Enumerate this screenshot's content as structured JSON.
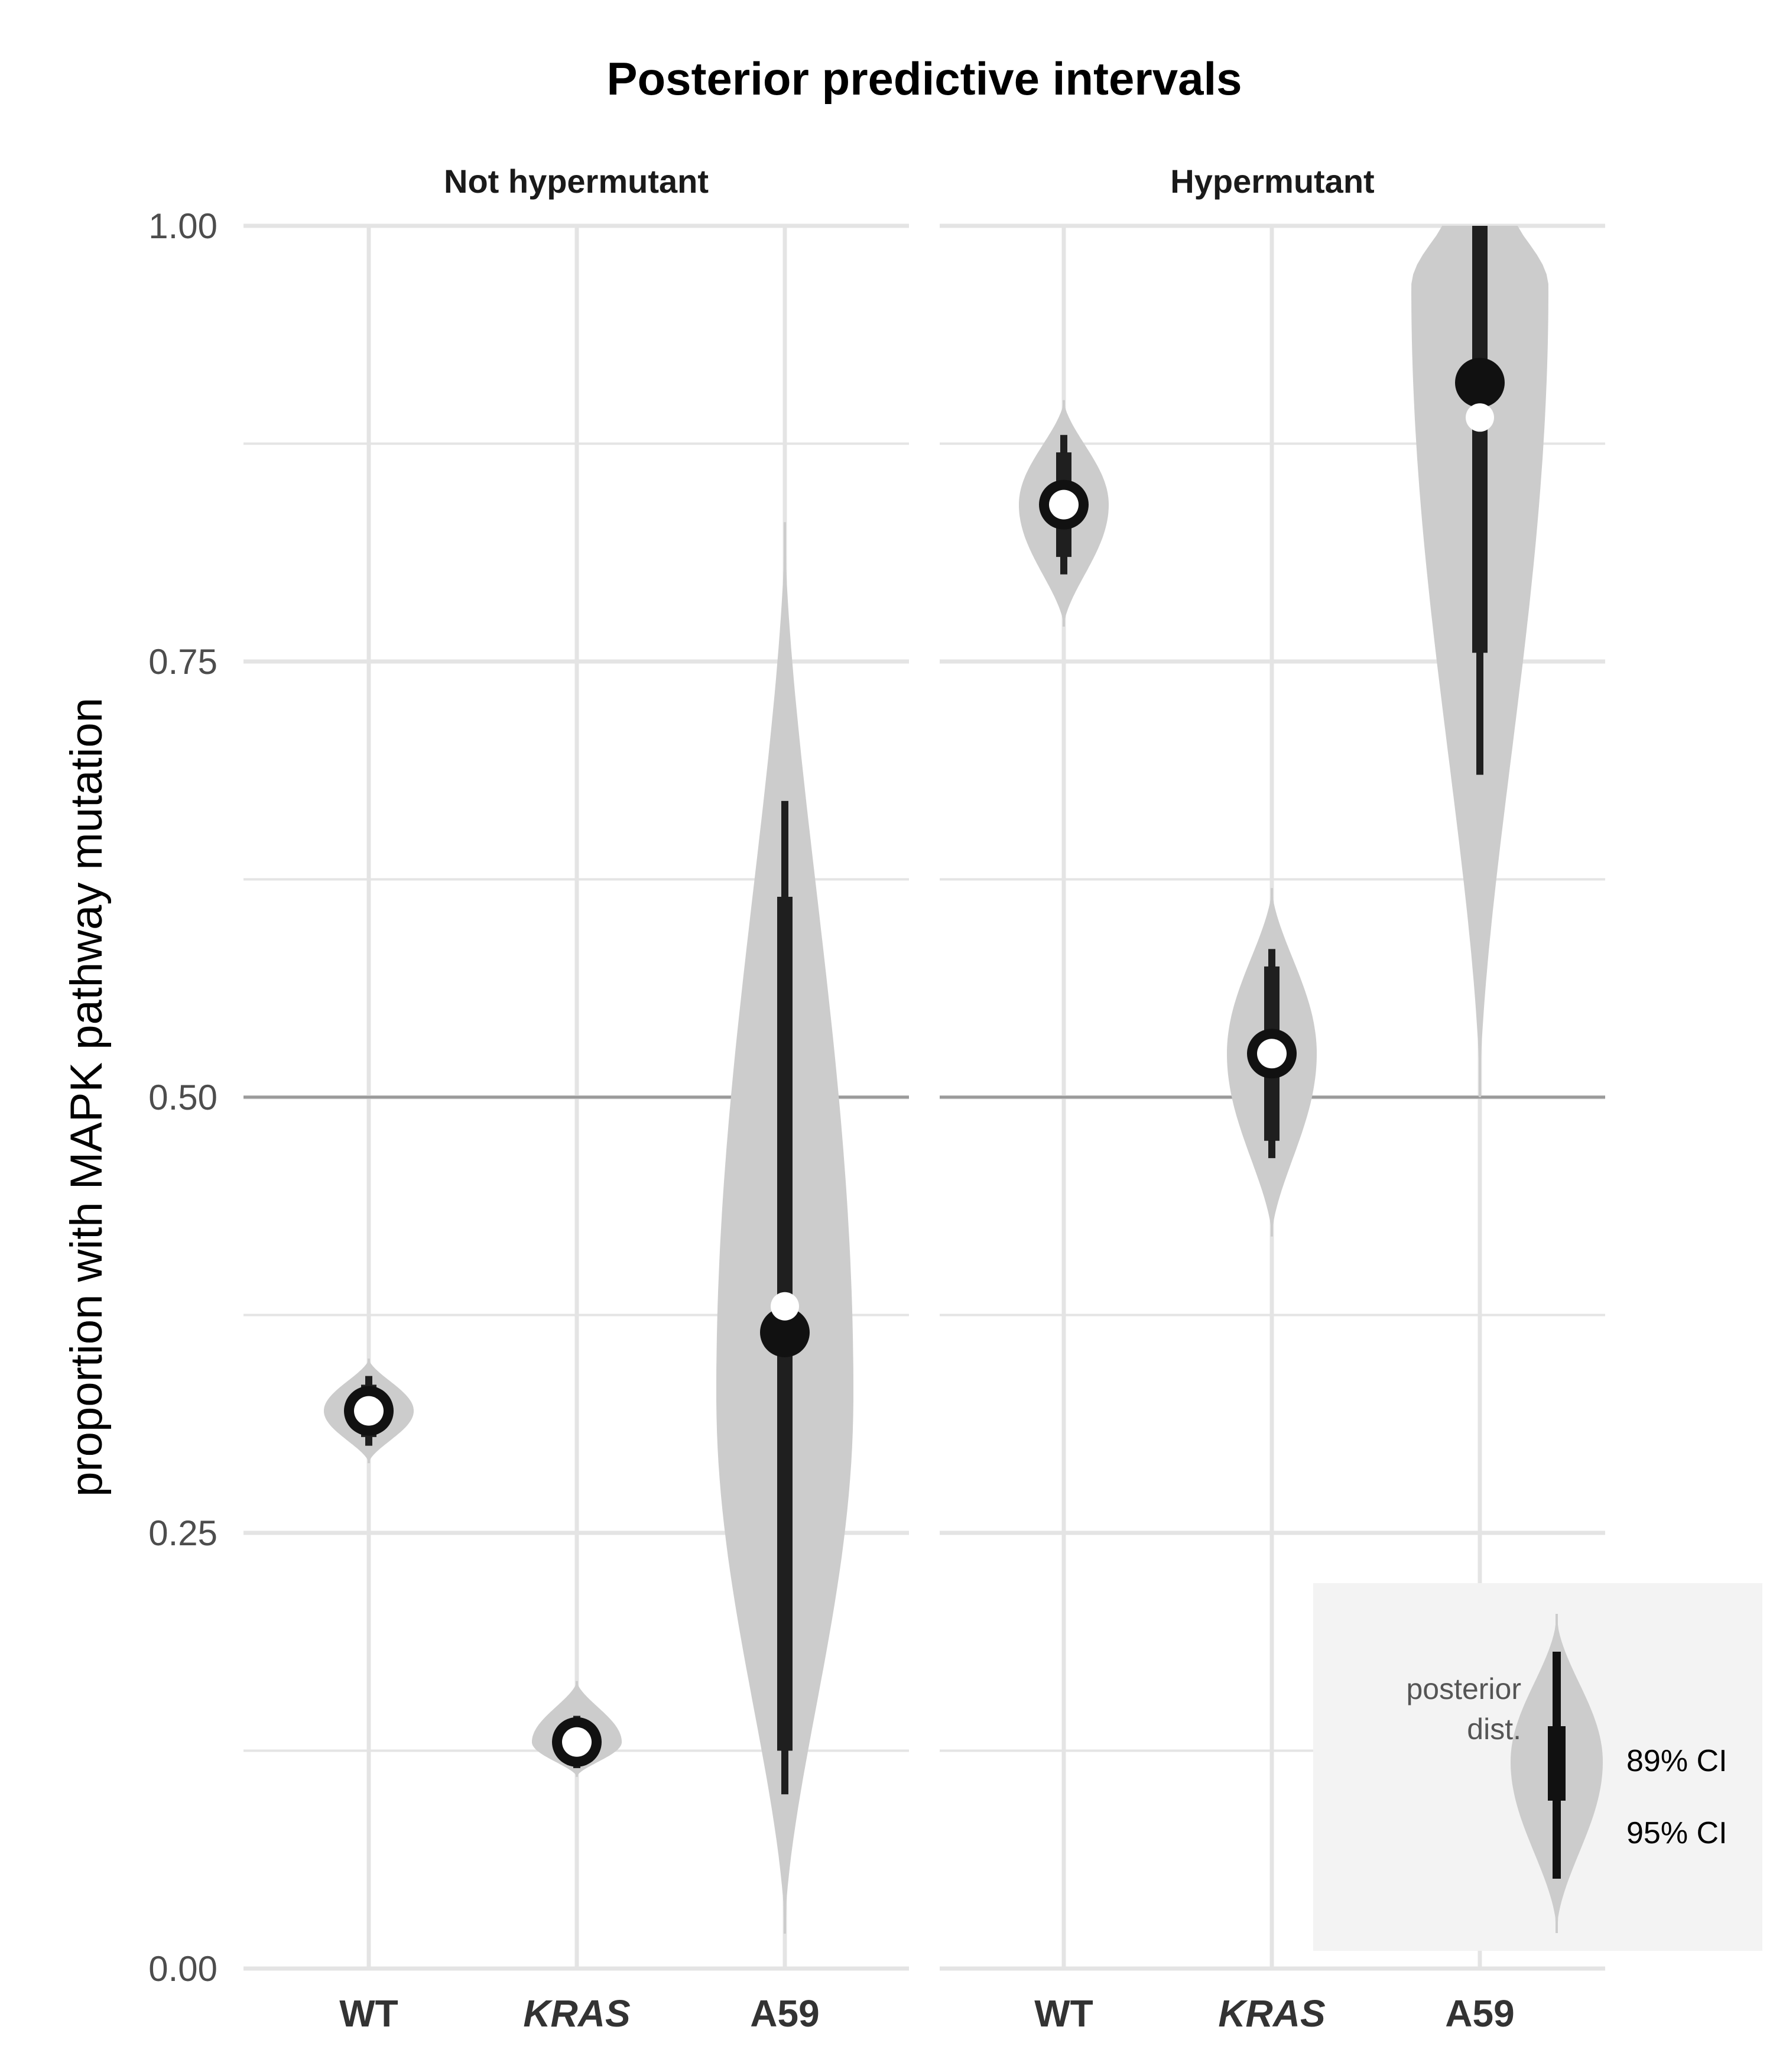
{
  "colors": {
    "grid": "#e4e4e4",
    "reference_line": "#9a9a9a",
    "violin_fill": "#cccccc",
    "interval": "#1f1f1f",
    "posterior_point": "#111111",
    "observed_point": "#ffffff",
    "legend_bg": "#f3f3f3"
  },
  "chart_data": {
    "type": "violin",
    "title": "Posterior predictive intervals",
    "ylabel": "proportion with MAPK pathway mutation",
    "ylim": [
      0,
      1
    ],
    "yticks": [
      "0.00",
      "0.25",
      "0.50",
      "0.75",
      "1.00"
    ],
    "reference_line_y": 0.5,
    "grid": true,
    "panels": [
      {
        "title": "Not hypermutant",
        "groups": [
          {
            "label": "WT",
            "italic": false,
            "median": 0.32,
            "observed": 0.32,
            "ci89": [
              0.305,
              0.335
            ],
            "ci95": [
              0.3,
              0.34
            ],
            "violin_range": [
              0.29,
              0.35
            ],
            "violin_peak": 0.32,
            "violin_width": 0.24,
            "point_style": "ring"
          },
          {
            "label": "KRAS",
            "italic": true,
            "median": 0.13,
            "observed": 0.13,
            "ci89": [
              0.12,
              0.14
            ],
            "ci95": [
              0.115,
              0.145
            ],
            "violin_range": [
              0.11,
              0.165
            ],
            "violin_peak": 0.13,
            "violin_width": 0.24,
            "point_style": "ring"
          },
          {
            "label": "A59",
            "italic": false,
            "median": 0.365,
            "observed": 0.38,
            "ci89": [
              0.125,
              0.615
            ],
            "ci95": [
              0.1,
              0.67
            ],
            "violin_range": [
              0.02,
              0.83
            ],
            "violin_peak": 0.33,
            "violin_width": 0.24,
            "point_style": "dot"
          }
        ]
      },
      {
        "title": "Hypermutant",
        "groups": [
          {
            "label": "WT",
            "italic": false,
            "median": 0.84,
            "observed": 0.84,
            "ci89": [
              0.81,
              0.87
            ],
            "ci95": [
              0.8,
              0.88
            ],
            "violin_range": [
              0.77,
              0.9
            ],
            "violin_peak": 0.84,
            "violin_width": 0.24,
            "point_style": "ring"
          },
          {
            "label": "KRAS",
            "italic": true,
            "median": 0.525,
            "observed": 0.525,
            "ci89": [
              0.475,
              0.575
            ],
            "ci95": [
              0.465,
              0.585
            ],
            "violin_range": [
              0.42,
              0.62
            ],
            "violin_peak": 0.525,
            "violin_width": 0.24,
            "point_style": "ring"
          },
          {
            "label": "A59",
            "italic": false,
            "median": 0.91,
            "observed": 0.89,
            "ci89": [
              0.755,
              1.0
            ],
            "ci95": [
              0.685,
              1.0
            ],
            "violin_range": [
              0.5,
              1.0
            ],
            "violin_peak": 0.965,
            "violin_width": 0.24,
            "point_style": "dot"
          }
        ]
      }
    ],
    "legend": {
      "position": "bottom-right",
      "dist_label_line1": "posterior",
      "dist_label_line2": "dist.",
      "ci89_label": "89% CI",
      "ci95_label": "95% CI"
    }
  }
}
